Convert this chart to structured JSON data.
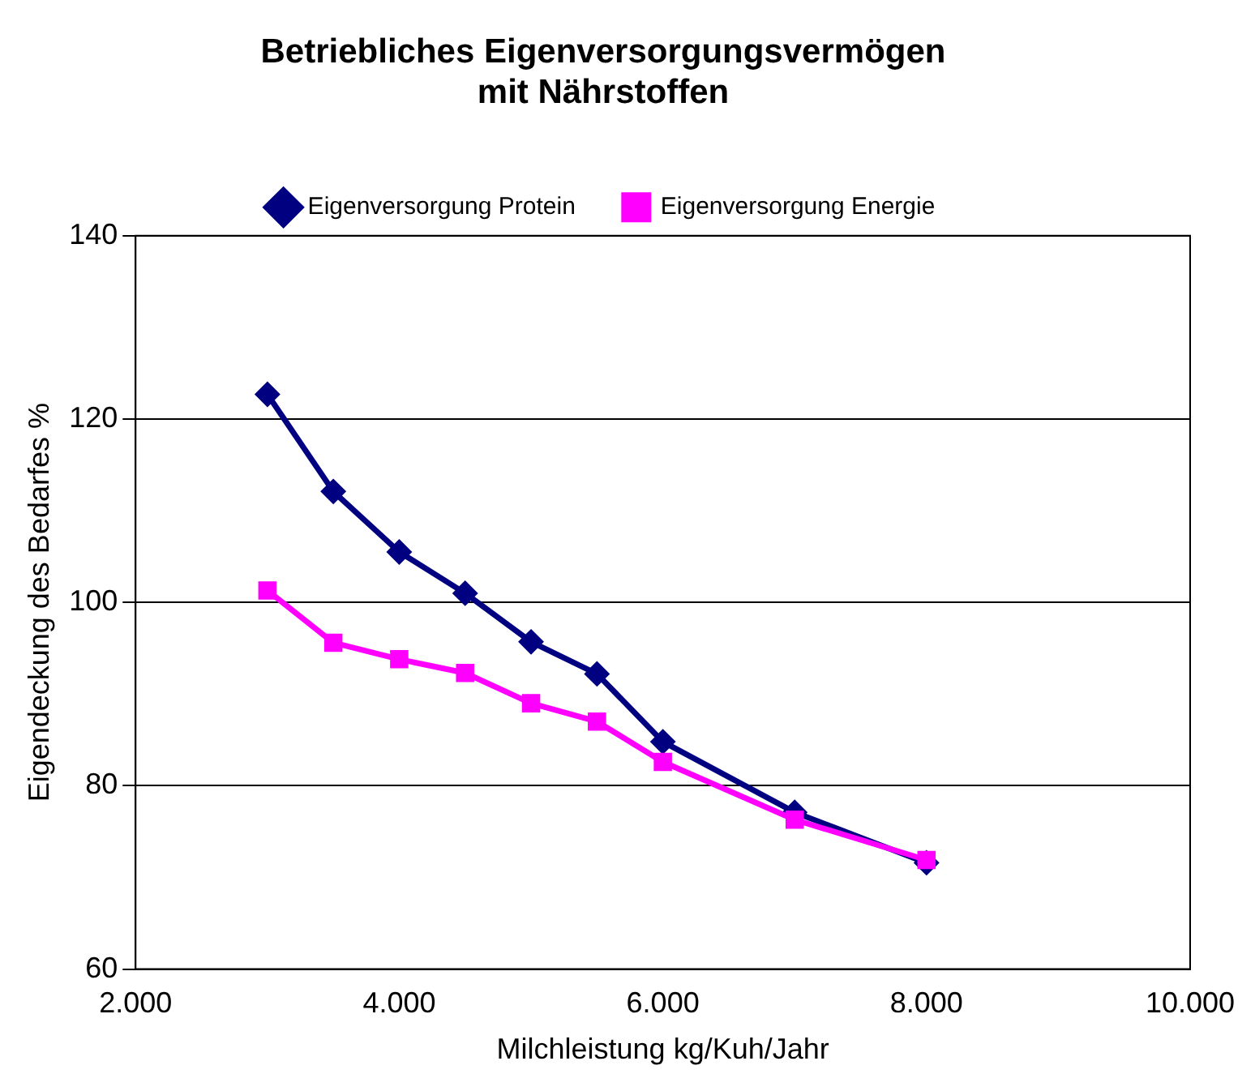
{
  "chart_data": {
    "type": "line",
    "title": "Betriebliches Eigenversorgungsvermögen\nmit Nährstoffen",
    "xlabel": "Milchleistung kg/Kuh/Jahr",
    "ylabel": "Eigendeckung des Bedarfes %",
    "x": [
      3000,
      3500,
      4000,
      4500,
      5000,
      5500,
      6000,
      7000,
      8000
    ],
    "series": [
      {
        "name": "Eigenversorgung Protein",
        "color": "#000080",
        "marker": "diamond",
        "values": [
          122.7,
          112.1,
          105.5,
          101,
          95.7,
          92.2,
          84.8,
          77.1,
          71.6
        ]
      },
      {
        "name": "Eigenversorgung Energie",
        "color": "#ff00ff",
        "marker": "square",
        "values": [
          101.3,
          95.6,
          93.8,
          92.3,
          89,
          87,
          82.6,
          76.3,
          71.9
        ]
      }
    ],
    "xlim": [
      2000,
      10000
    ],
    "xticks": [
      {
        "value": 2000,
        "label": "2.000"
      },
      {
        "value": 4000,
        "label": "4.000"
      },
      {
        "value": 6000,
        "label": "6.000"
      },
      {
        "value": 8000,
        "label": "8.000"
      },
      {
        "value": 10000,
        "label": "10.000"
      }
    ],
    "ylim": [
      60,
      140
    ],
    "yticks": [
      60,
      80,
      100,
      120,
      140
    ],
    "grid": "y",
    "legend": "top"
  }
}
